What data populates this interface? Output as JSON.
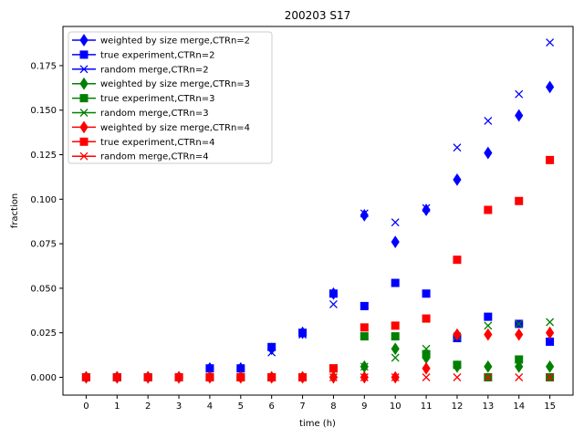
{
  "chart_data": {
    "type": "scatter",
    "title": "200203 S17",
    "xlabel": "time (h)",
    "ylabel": "fraction",
    "xlim": [
      -0.75,
      15.75
    ],
    "ylim": [
      -0.01,
      0.197
    ],
    "x_ticks": [
      0,
      1,
      2,
      3,
      4,
      5,
      6,
      7,
      8,
      9,
      10,
      11,
      12,
      13,
      14,
      15
    ],
    "y_ticks": [
      0.0,
      0.025,
      0.05,
      0.075,
      0.1,
      0.125,
      0.15,
      0.175
    ],
    "y_tick_labels": [
      "0.000",
      "0.025",
      "0.050",
      "0.075",
      "0.100",
      "0.125",
      "0.150",
      "0.175"
    ],
    "grid": false,
    "legend_position": "upper-left",
    "x": [
      0,
      1,
      2,
      3,
      4,
      5,
      6,
      7,
      8,
      9,
      10,
      11,
      12,
      13,
      14,
      15
    ],
    "series": [
      {
        "name": "weighted by size merge,CTRn=2",
        "color": "#0000ff",
        "marker": "diamond",
        "values": [
          0,
          0,
          0,
          0,
          0.005,
          0.005,
          0.016,
          0.025,
          0.047,
          0.091,
          0.076,
          0.094,
          0.111,
          0.126,
          0.147,
          0.163
        ]
      },
      {
        "name": "true experiment,CTRn=2",
        "color": "#0000ff",
        "marker": "square",
        "values": [
          0,
          0,
          0,
          0,
          0.005,
          0.005,
          0.017,
          0.025,
          0.047,
          0.04,
          0.053,
          0.047,
          0.022,
          0.034,
          0.03,
          0.02
        ]
      },
      {
        "name": "random merge,CTRn=2",
        "color": "#0000ff",
        "marker": "x",
        "values": [
          0,
          0,
          0,
          0,
          0.005,
          0.005,
          0.014,
          0.024,
          0.041,
          0.092,
          0.087,
          0.095,
          0.129,
          0.144,
          0.159,
          0.188
        ]
      },
      {
        "name": "weighted by size merge,CTRn=3",
        "color": "#008000",
        "marker": "diamond",
        "values": [
          0,
          0,
          0,
          0,
          0,
          0,
          0,
          0,
          0,
          0.006,
          0.016,
          0.011,
          0.006,
          0.006,
          0.006,
          0.006
        ]
      },
      {
        "name": "true experiment,CTRn=3",
        "color": "#008000",
        "marker": "square",
        "values": [
          0,
          0,
          0,
          0,
          0,
          0,
          0,
          0,
          0.005,
          0.023,
          0.023,
          0.013,
          0.007,
          0,
          0.01,
          0
        ]
      },
      {
        "name": "random merge,CTRn=3",
        "color": "#008000",
        "marker": "x",
        "values": [
          0,
          0,
          0,
          0,
          0,
          0,
          0,
          0,
          0.005,
          0.006,
          0.011,
          0.016,
          0.023,
          0.029,
          0.03,
          0.031
        ]
      },
      {
        "name": "weighted by size merge,CTRn=4",
        "color": "#ff0000",
        "marker": "diamond",
        "values": [
          0,
          0,
          0,
          0,
          0,
          0,
          0,
          0,
          0,
          0,
          0,
          0.005,
          0.024,
          0.024,
          0.024,
          0.025
        ]
      },
      {
        "name": "true experiment,CTRn=4",
        "color": "#ff0000",
        "marker": "square",
        "values": [
          0,
          0,
          0,
          0,
          0,
          0,
          0,
          0,
          0.005,
          0.028,
          0.029,
          0.033,
          0.066,
          0.094,
          0.099,
          0.122
        ]
      },
      {
        "name": "random merge,CTRn=4",
        "color": "#ff0000",
        "marker": "x",
        "values": [
          0,
          0,
          0,
          0,
          0,
          0,
          0,
          0,
          0,
          0,
          0,
          0,
          0,
          0,
          0,
          0
        ]
      }
    ]
  }
}
